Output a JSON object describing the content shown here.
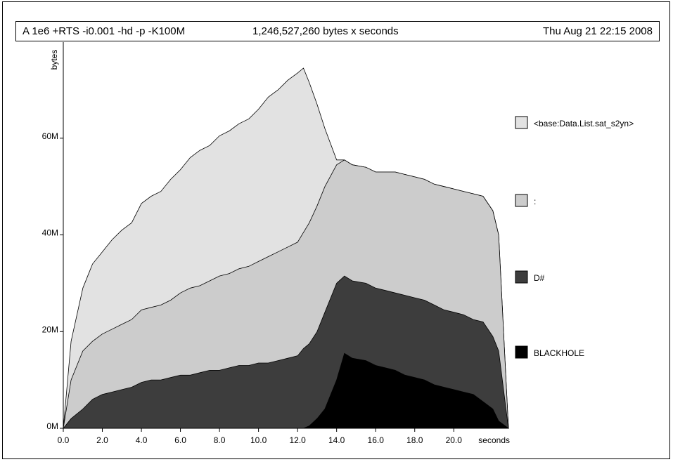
{
  "header": {
    "left": "A 1e6 +RTS -i0.001 -hd -p -K100M",
    "center": "1,246,527,260 bytes x seconds",
    "right": "Thu Aug 21 22:15 2008"
  },
  "chart_data": {
    "type": "area",
    "stacked": true,
    "xlabel": "seconds",
    "ylabel": "bytes",
    "xlim": [
      0,
      22.8
    ],
    "ylim": [
      0,
      79
    ],
    "x_ticks": [
      "0.0",
      "2.0",
      "4.0",
      "6.0",
      "8.0",
      "10.0",
      "12.0",
      "14.0",
      "16.0",
      "18.0",
      "20.0"
    ],
    "y_ticks": [
      "0M",
      "20M",
      "40M",
      "60M"
    ],
    "legend_position": "right",
    "x": [
      0,
      0.4,
      1,
      1.5,
      2,
      2.5,
      3,
      3.5,
      4,
      4.5,
      5,
      5.5,
      6,
      6.5,
      7,
      7.5,
      8,
      8.5,
      9,
      9.5,
      10,
      10.5,
      11,
      11.5,
      12,
      12.3,
      12.6,
      13,
      13.4,
      14,
      14.4,
      14.8,
      15.5,
      16,
      16.5,
      17,
      17.5,
      18,
      18.5,
      19,
      19.5,
      20,
      20.5,
      21,
      21.5,
      22,
      22.3,
      22.8
    ],
    "series": [
      {
        "name": "BLACKHOLE",
        "color": "#000000",
        "values": [
          0,
          0,
          0,
          0,
          0,
          0,
          0,
          0,
          0,
          0,
          0,
          0,
          0,
          0,
          0,
          0,
          0,
          0,
          0,
          0,
          0,
          0,
          0,
          0,
          0,
          0,
          0.5,
          2,
          4,
          10,
          15.5,
          14.5,
          14,
          13,
          12.5,
          12,
          11,
          10.5,
          10,
          9,
          8.5,
          8,
          7.5,
          7,
          5.5,
          4,
          1.5,
          0
        ]
      },
      {
        "name": "D#",
        "color": "#3d3d3d",
        "values": [
          0,
          2,
          4,
          6,
          7,
          7.5,
          8,
          8.5,
          9.5,
          10,
          10,
          10.5,
          11,
          11,
          11.5,
          12,
          12,
          12.5,
          13,
          13,
          13.5,
          13.5,
          14,
          14.5,
          15,
          16.5,
          17,
          18,
          20,
          20,
          16,
          16,
          16,
          16,
          16,
          16,
          16.5,
          16.5,
          16.5,
          16.5,
          16,
          16,
          16,
          15.5,
          16.5,
          15,
          14.5,
          0
        ]
      },
      {
        "name": ":",
        "color": "#cccccc",
        "values": [
          0,
          8,
          12,
          12,
          12.5,
          13,
          13.5,
          14,
          15,
          15,
          15.5,
          16,
          17,
          18,
          18,
          18.5,
          19.5,
          19.5,
          20,
          20.5,
          21,
          22,
          22.5,
          23,
          23.5,
          24,
          25,
          26,
          26,
          24.5,
          24,
          24,
          24,
          24,
          24.5,
          25,
          25,
          25,
          25,
          25,
          25.5,
          25.5,
          25.5,
          26,
          26,
          26,
          24,
          0
        ]
      },
      {
        "name": "<base:Data.List.sat_s2yn>",
        "color": "#e2e2e2",
        "values": [
          0,
          8,
          13,
          16,
          17,
          18.5,
          19.5,
          20,
          22,
          23,
          23.5,
          25,
          25.5,
          27,
          28,
          28,
          29,
          29.5,
          30,
          30.5,
          31.5,
          33,
          33.5,
          34.5,
          35,
          34,
          29,
          21,
          12,
          1,
          0,
          0,
          0,
          0,
          0,
          0,
          0,
          0,
          0,
          0,
          0,
          0,
          0,
          0,
          0,
          0,
          0,
          0
        ]
      }
    ]
  }
}
